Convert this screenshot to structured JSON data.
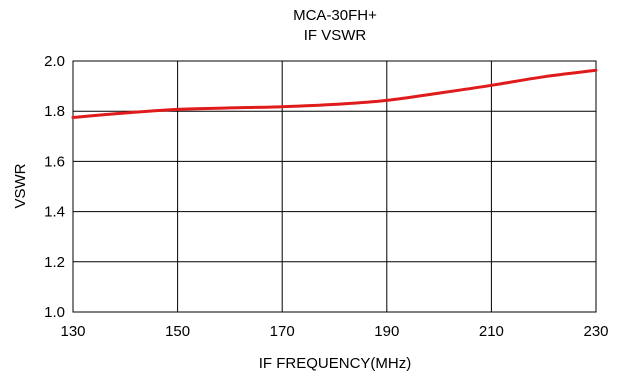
{
  "chart_data": {
    "type": "line",
    "title_lines": [
      "MCA-30FH+",
      "IF VSWR"
    ],
    "xlabel": "IF FREQUENCY(MHz)",
    "ylabel": "VSWR",
    "xlim": [
      130,
      230
    ],
    "ylim": [
      1.0,
      2.0
    ],
    "xticks": [
      "130",
      "150",
      "170",
      "190",
      "210",
      "230"
    ],
    "yticks": [
      "1.0",
      "1.2",
      "1.4",
      "1.6",
      "1.8",
      "2.0"
    ],
    "grid": true,
    "legend": "none",
    "series": [
      {
        "color": "#e01b1b",
        "x": [
          130,
          140,
          150,
          160,
          170,
          180,
          190,
          200,
          210,
          220,
          230
        ],
        "y": [
          1.775,
          1.793,
          1.807,
          1.813,
          1.818,
          1.827,
          1.843,
          1.872,
          1.903,
          1.937,
          1.963
        ]
      }
    ]
  }
}
